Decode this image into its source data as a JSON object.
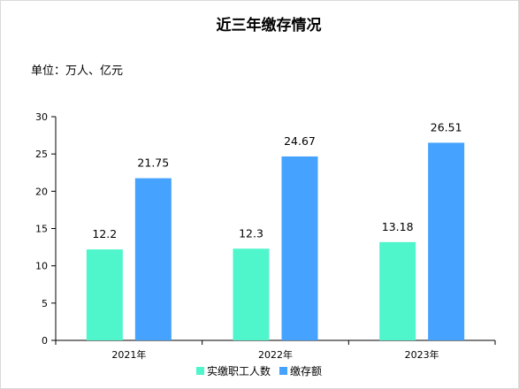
{
  "chart_data": {
    "type": "bar",
    "title": "近三年缴存情况",
    "subtitle": "单位：万人、亿元",
    "categories": [
      "2021年",
      "2022年",
      "2023年"
    ],
    "series": [
      {
        "name": "实缴职工人数",
        "values": [
          12.2,
          12.3,
          13.18
        ],
        "color": "#4FF5CB"
      },
      {
        "name": "缴存额",
        "values": [
          21.75,
          24.67,
          26.51
        ],
        "color": "#46A2FF"
      }
    ],
    "ylim": [
      0,
      30
    ],
    "yticks": [
      0,
      5,
      10,
      15,
      20,
      25,
      30
    ],
    "grid": false,
    "legend": "bottom"
  }
}
